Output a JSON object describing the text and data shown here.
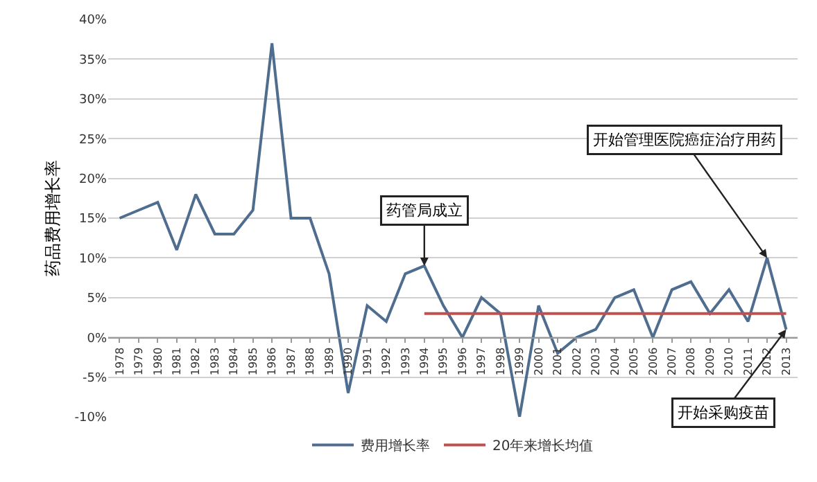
{
  "chart_data": {
    "type": "line",
    "ylabel": "药品费用增长率",
    "categories": [
      "1978",
      "1979",
      "1980",
      "1981",
      "1982",
      "1983",
      "1984",
      "1985",
      "1986",
      "1987",
      "1988",
      "1989",
      "1990",
      "1991",
      "1992",
      "1993",
      "1994",
      "1995",
      "1996",
      "1997",
      "1998",
      "1999",
      "2000",
      "2001",
      "2002",
      "2003",
      "2004",
      "2005",
      "2006",
      "2007",
      "2008",
      "2009",
      "2010",
      "2011",
      "2012",
      "2013"
    ],
    "series": [
      {
        "name": "费用增长率",
        "color": "#4f6d8f",
        "values": [
          15,
          16,
          17,
          11,
          18,
          13,
          13,
          16,
          37,
          15,
          15,
          8,
          -7,
          4,
          2,
          8,
          9,
          4,
          0,
          5,
          3,
          -10,
          4,
          -2,
          0,
          1,
          5,
          6,
          0,
          6,
          7,
          3,
          6,
          2,
          10,
          1
        ]
      },
      {
        "name": "20年来增长均值",
        "color": "#c0504d",
        "values": [
          null,
          null,
          null,
          null,
          null,
          null,
          null,
          null,
          null,
          null,
          null,
          null,
          null,
          null,
          null,
          null,
          3,
          3,
          3,
          3,
          3,
          3,
          3,
          3,
          3,
          3,
          3,
          3,
          3,
          3,
          3,
          3,
          3,
          3,
          3,
          3
        ]
      }
    ],
    "ylim": [
      -10,
      40
    ],
    "yticks": [
      {
        "value": -10,
        "label": "-10%"
      },
      {
        "value": -5,
        "label": "-5%"
      },
      {
        "value": 0,
        "label": "0%"
      },
      {
        "value": 5,
        "label": "5%"
      },
      {
        "value": 10,
        "label": "10%"
      },
      {
        "value": 15,
        "label": "15%"
      },
      {
        "value": 20,
        "label": "20%"
      },
      {
        "value": 25,
        "label": "25%"
      },
      {
        "value": 30,
        "label": "30%"
      },
      {
        "value": 35,
        "label": "35%"
      },
      {
        "value": 40,
        "label": "40%"
      }
    ],
    "annotations": [
      {
        "text": "药管局成立",
        "x": "1994",
        "y": 9
      },
      {
        "text": "开始管理医院癌症治疗用药",
        "x": "2012",
        "y": 10
      },
      {
        "text": "开始采购疫苗",
        "x": "2013",
        "y": 1
      }
    ],
    "grid": "y",
    "legend": "bottom",
    "marker": "none",
    "line_style": "solid"
  }
}
